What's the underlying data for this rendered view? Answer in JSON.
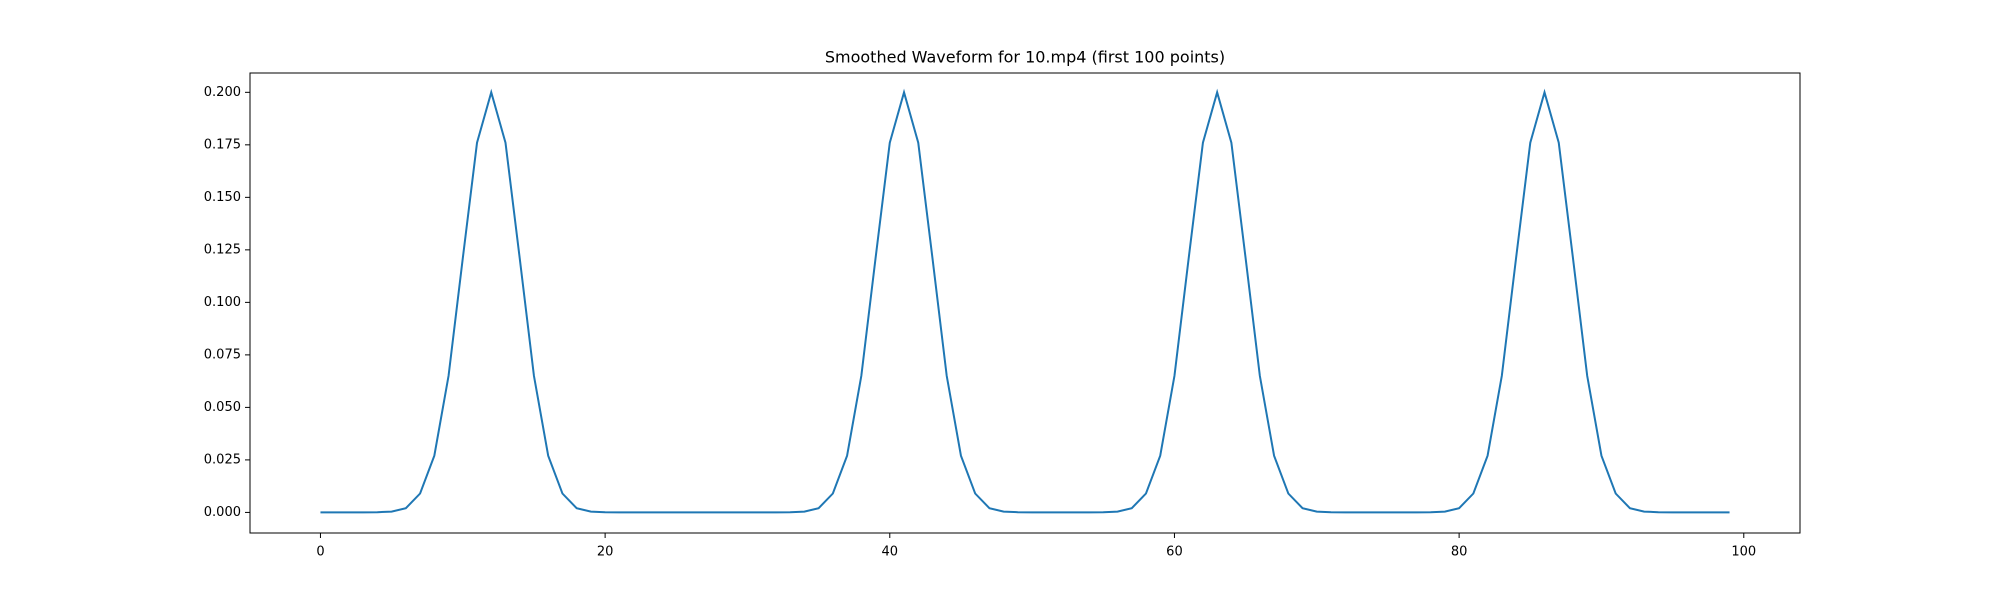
{
  "chart_data": {
    "type": "line",
    "title": "Smoothed Waveform for 10.mp4 (first 100 points)",
    "x": [
      0,
      1,
      2,
      3,
      4,
      5,
      6,
      7,
      8,
      9,
      10,
      11,
      12,
      13,
      14,
      15,
      16,
      17,
      18,
      19,
      20,
      21,
      22,
      23,
      24,
      25,
      26,
      27,
      28,
      29,
      30,
      31,
      32,
      33,
      34,
      35,
      36,
      37,
      38,
      39,
      40,
      41,
      42,
      43,
      44,
      45,
      46,
      47,
      48,
      49,
      50,
      51,
      52,
      53,
      54,
      55,
      56,
      57,
      58,
      59,
      60,
      61,
      62,
      63,
      64,
      65,
      66,
      67,
      68,
      69,
      70,
      71,
      72,
      73,
      74,
      75,
      76,
      77,
      78,
      79,
      80,
      81,
      82,
      83,
      84,
      85,
      86,
      87,
      88,
      89,
      90,
      91,
      92,
      93,
      94,
      95,
      96,
      97,
      98,
      99
    ],
    "values": [
      0,
      0,
      0,
      0,
      0.0001,
      0.0004,
      0.002,
      0.009,
      0.027,
      0.065,
      0.121,
      0.176,
      0.2,
      0.176,
      0.121,
      0.065,
      0.027,
      0.009,
      0.002,
      0.0004,
      0.0001,
      0,
      0,
      0,
      0,
      0,
      0,
      0,
      0,
      0,
      0,
      0,
      0,
      0.0001,
      0.0004,
      0.002,
      0.009,
      0.027,
      0.065,
      0.121,
      0.176,
      0.2,
      0.176,
      0.121,
      0.065,
      0.027,
      0.009,
      0.002,
      0.0004,
      0.0001,
      0,
      0,
      0,
      0,
      0,
      0.0001,
      0.0004,
      0.002,
      0.009,
      0.027,
      0.065,
      0.121,
      0.176,
      0.2,
      0.176,
      0.121,
      0.065,
      0.027,
      0.009,
      0.002,
      0.0004,
      0.0001,
      0,
      0,
      0,
      0,
      0,
      0,
      0.0001,
      0.0004,
      0.002,
      0.009,
      0.027,
      0.065,
      0.121,
      0.176,
      0.2,
      0.176,
      0.121,
      0.065,
      0.027,
      0.009,
      0.002,
      0.0004,
      0.0001,
      0,
      0,
      0,
      0,
      0
    ],
    "color": "#1f77b4",
    "xlim": [
      -4.95,
      103.95
    ],
    "xticks": [
      0,
      20,
      40,
      60,
      80,
      100
    ],
    "ylim": [
      -0.0098,
      0.2092
    ],
    "yticks": [
      {
        "value": 0,
        "label": "0.000"
      },
      {
        "value": 0.025,
        "label": "0.025"
      },
      {
        "value": 0.05,
        "label": "0.050"
      },
      {
        "value": 0.075,
        "label": "0.075"
      },
      {
        "value": 0.1,
        "label": "0.100"
      },
      {
        "value": 0.125,
        "label": "0.125"
      },
      {
        "value": 0.15,
        "label": "0.150"
      },
      {
        "value": 0.175,
        "label": "0.175"
      },
      {
        "value": 0.2,
        "label": "0.200"
      }
    ],
    "grid": false
  }
}
